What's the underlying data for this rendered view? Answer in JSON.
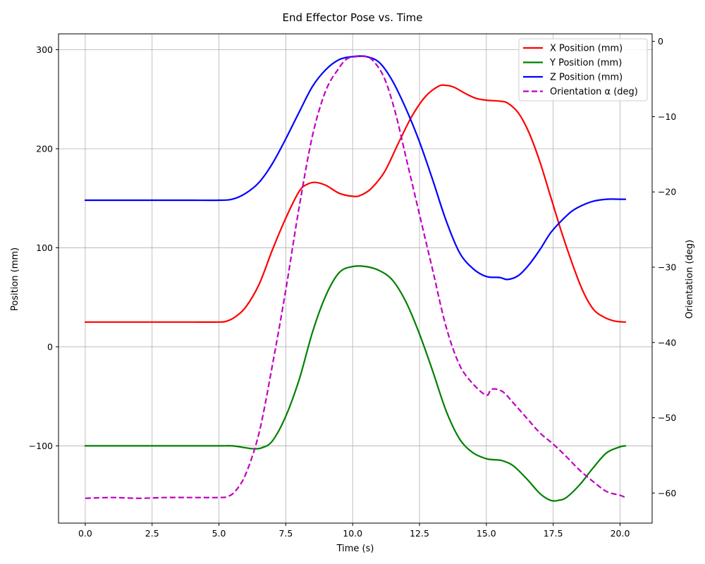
{
  "chart_data": {
    "type": "line",
    "title": "End Effector Pose vs. Time",
    "xlabel": "Time (s)",
    "ylabel_left": "Position (mm)",
    "ylabel_right": "Orientation (deg)",
    "xlim": [
      -1.0,
      21.2
    ],
    "ylim_left": [
      -178,
      316
    ],
    "ylim_right": [
      -64,
      1
    ],
    "x_ticks": [
      0.0,
      2.5,
      5.0,
      7.5,
      10.0,
      12.5,
      15.0,
      17.5,
      20.0
    ],
    "x_tick_labels": [
      "0.0",
      "2.5",
      "5.0",
      "7.5",
      "10.0",
      "12.5",
      "15.0",
      "17.5",
      "20.0"
    ],
    "y_left_ticks": [
      -100,
      0,
      100,
      200,
      300
    ],
    "y_left_tick_labels": [
      "−100",
      "0",
      "100",
      "200",
      "300"
    ],
    "y_right_ticks": [
      0,
      -10,
      -20,
      -30,
      -40,
      -50,
      -60
    ],
    "y_right_tick_labels": [
      "0",
      "−10",
      "−20",
      "−30",
      "−40",
      "−50",
      "−60"
    ],
    "grid": true,
    "legend_position": "top-right",
    "series": [
      {
        "name": "X Position (mm)",
        "color": "#ff0000",
        "axis": "left",
        "dashed": false,
        "x": [
          0,
          1,
          2,
          3,
          4,
          5,
          5.3,
          5.6,
          6.0,
          6.5,
          7.0,
          7.5,
          8.0,
          8.3,
          8.6,
          9.0,
          9.5,
          10.0,
          10.3,
          10.7,
          11.2,
          11.7,
          12.2,
          12.7,
          13.2,
          13.5,
          13.8,
          14.2,
          14.6,
          15.0,
          15.5,
          15.8,
          16.2,
          16.6,
          17.0,
          17.4,
          17.8,
          18.2,
          18.6,
          19.0,
          19.4,
          19.8,
          20.2
        ],
        "y": [
          25,
          25,
          25,
          25,
          25,
          25,
          26,
          30,
          40,
          63,
          98,
          130,
          157,
          164,
          166,
          163,
          155,
          152,
          153,
          160,
          177,
          205,
          232,
          252,
          263,
          264,
          262,
          256,
          251,
          249,
          248,
          246,
          236,
          216,
          187,
          152,
          117,
          85,
          57,
          38,
          30,
          26,
          25
        ]
      },
      {
        "name": "Y Position (mm)",
        "color": "#008000",
        "axis": "left",
        "dashed": false,
        "x": [
          0,
          1,
          2,
          3,
          4,
          5,
          5.5,
          6.0,
          6.3,
          6.6,
          7.0,
          7.5,
          8.0,
          8.5,
          9.0,
          9.5,
          10.0,
          10.5,
          11.0,
          11.5,
          12.0,
          12.5,
          13.0,
          13.5,
          14.0,
          14.5,
          15.0,
          15.3,
          15.6,
          16.0,
          16.5,
          17.0,
          17.4,
          17.7,
          18.0,
          18.5,
          19.0,
          19.5,
          20.0,
          20.2
        ],
        "y": [
          -100,
          -100,
          -100,
          -100,
          -100,
          -100,
          -100,
          -102,
          -103,
          -102,
          -95,
          -70,
          -33,
          15,
          52,
          75,
          81,
          81,
          77,
          67,
          45,
          13,
          -25,
          -65,
          -93,
          -107,
          -113,
          -114,
          -115,
          -120,
          -133,
          -148,
          -155,
          -155,
          -152,
          -139,
          -122,
          -107,
          -101,
          -100
        ]
      },
      {
        "name": "Z Position (mm)",
        "color": "#0000ff",
        "axis": "left",
        "dashed": false,
        "x": [
          0,
          1,
          2,
          3,
          4,
          5,
          5.5,
          6.0,
          6.5,
          7.0,
          7.5,
          8.0,
          8.5,
          9.0,
          9.5,
          10.0,
          10.5,
          11.0,
          11.5,
          12.0,
          12.5,
          13.0,
          13.5,
          14.0,
          14.5,
          15.0,
          15.5,
          15.8,
          16.2,
          16.6,
          17.0,
          17.4,
          17.8,
          18.2,
          18.6,
          19.0,
          19.5,
          20.0,
          20.2
        ],
        "y": [
          148,
          148,
          148,
          148,
          148,
          148,
          149,
          155,
          166,
          185,
          210,
          237,
          263,
          280,
          290,
          293,
          293,
          287,
          268,
          240,
          207,
          168,
          127,
          95,
          79,
          71,
          70,
          68,
          72,
          83,
          98,
          115,
          127,
          137,
          143,
          147,
          149,
          149,
          149
        ]
      },
      {
        "name": "Orientation α (deg)",
        "color": "#c000c0",
        "axis": "right",
        "dashed": true,
        "x": [
          0,
          1,
          2,
          3,
          4,
          5,
          5.3,
          5.6,
          6.0,
          6.5,
          7.0,
          7.5,
          8.0,
          8.5,
          9.0,
          9.5,
          9.8,
          10.2,
          10.5,
          10.8,
          11.2,
          11.6,
          12.0,
          12.5,
          13.0,
          13.5,
          14.0,
          14.5,
          15.0,
          15.2,
          15.6,
          16.0,
          16.5,
          17.0,
          17.5,
          18.0,
          18.5,
          19.0,
          19.5,
          20.0,
          20.2
        ],
        "y": [
          -60.7,
          -60.6,
          -60.7,
          -60.6,
          -60.6,
          -60.6,
          -60.5,
          -59.8,
          -57.5,
          -52,
          -43,
          -33,
          -22,
          -12.5,
          -6.5,
          -3.5,
          -2.3,
          -2.0,
          -2.0,
          -2.7,
          -5,
          -9.5,
          -15.5,
          -23,
          -30.5,
          -38,
          -43,
          -45.5,
          -47,
          -46.2,
          -46.5,
          -48,
          -50,
          -52,
          -53.5,
          -55.2,
          -57,
          -58.5,
          -59.8,
          -60.3,
          -60.6
        ]
      }
    ]
  }
}
